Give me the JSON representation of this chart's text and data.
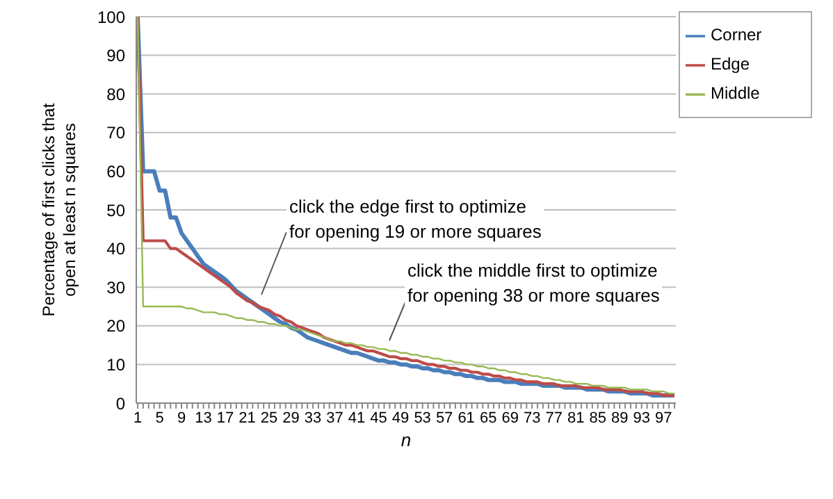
{
  "chart_data": {
    "type": "line",
    "xlabel": "n",
    "ylabel": "Percentage of first clicks that open at least n squares",
    "categories": [
      "1",
      null,
      null,
      null,
      "5",
      null,
      null,
      null,
      "9",
      null,
      null,
      null,
      "13",
      null,
      null,
      null,
      "17",
      null,
      null,
      null,
      "21",
      null,
      null,
      null,
      "25",
      null,
      null,
      null,
      "29",
      null,
      null,
      null,
      "33",
      null,
      null,
      null,
      "37",
      null,
      null,
      null,
      "41",
      null,
      null,
      null,
      "45",
      null,
      null,
      null,
      "49",
      null,
      null,
      null,
      "53",
      null,
      null,
      null,
      "57",
      null,
      null,
      null,
      "61",
      null,
      null,
      null,
      "65",
      null,
      null,
      null,
      "69",
      null,
      null,
      null,
      "73",
      null,
      null,
      null,
      "77",
      null,
      null,
      null,
      "81",
      null,
      null,
      null,
      "85",
      null,
      null,
      null,
      "89",
      null,
      null,
      null,
      "93",
      null,
      null,
      null,
      "97",
      null,
      null
    ],
    "series": [
      {
        "name": "Corner",
        "color": "#4a7ebb",
        "values": [
          100,
          60,
          60,
          60,
          55,
          55,
          48,
          48,
          44,
          42,
          40,
          38,
          36,
          35,
          34,
          33,
          32,
          30.5,
          29,
          28,
          27,
          26,
          25,
          24,
          23,
          22,
          21,
          20.5,
          19.5,
          19,
          18,
          17,
          16.5,
          16,
          15.5,
          15,
          14.5,
          14,
          13.5,
          13,
          13,
          12.5,
          12,
          11.5,
          11,
          11,
          10.5,
          10.5,
          10,
          10,
          9.5,
          9.5,
          9,
          9,
          8.5,
          8.5,
          8,
          8,
          7.5,
          7.5,
          7,
          7,
          6.5,
          6.5,
          6,
          6,
          6,
          5.5,
          5.5,
          5.5,
          5,
          5,
          5,
          5,
          4.5,
          4.5,
          4.5,
          4.5,
          4,
          4,
          4,
          4,
          3.5,
          3.5,
          3.5,
          3.5,
          3,
          3,
          3,
          3,
          2.5,
          2.5,
          2.5,
          2.5,
          2,
          2,
          2,
          2,
          2
        ]
      },
      {
        "name": "Edge",
        "color": "#be4b48",
        "values": [
          100,
          42,
          42,
          42,
          42,
          42,
          40,
          40,
          39,
          38,
          37,
          36,
          35,
          34,
          33,
          32,
          31,
          30,
          28.5,
          27.5,
          26.5,
          26,
          25,
          24.5,
          24,
          23,
          22.5,
          21.5,
          21,
          20,
          19.5,
          19,
          18.5,
          18,
          17,
          16.5,
          16,
          15.5,
          15,
          15,
          14.5,
          14,
          13.5,
          13.5,
          13,
          12.5,
          12,
          12,
          11.5,
          11.5,
          11,
          11,
          10.5,
          10,
          10,
          9.5,
          9.5,
          9,
          9,
          8.5,
          8.5,
          8,
          8,
          7.5,
          7.5,
          7,
          7,
          6.5,
          6.5,
          6,
          6,
          5.5,
          5.5,
          5.5,
          5,
          5,
          5,
          4.5,
          4.5,
          4.5,
          4.5,
          4,
          4,
          4,
          4,
          3.5,
          3.5,
          3.5,
          3.5,
          3,
          3,
          3,
          3,
          2.5,
          2.5,
          2.5,
          2,
          2,
          2
        ]
      },
      {
        "name": "Middle",
        "color": "#98b954",
        "values": [
          100,
          25,
          25,
          25,
          25,
          25,
          25,
          25,
          25,
          24.5,
          24.5,
          24,
          23.5,
          23.5,
          23.5,
          23,
          23,
          22.5,
          22,
          22,
          21.5,
          21.5,
          21,
          21,
          20.5,
          20.5,
          20,
          20,
          19.5,
          19,
          19,
          18.5,
          18,
          17.5,
          17,
          16.5,
          16,
          16,
          15.5,
          15.5,
          15,
          15,
          14.5,
          14.5,
          14,
          14,
          13.5,
          13.5,
          13,
          13,
          12.5,
          12.5,
          12,
          12,
          11.5,
          11.5,
          11,
          11,
          10.5,
          10.5,
          10,
          10,
          9.5,
          9.5,
          9,
          9,
          8.5,
          8.5,
          8,
          8,
          7.5,
          7.5,
          7,
          7,
          6.5,
          6.5,
          6,
          6,
          5.5,
          5.5,
          5,
          5,
          5,
          4.5,
          4.5,
          4.5,
          4,
          4,
          4,
          4,
          3.5,
          3.5,
          3.5,
          3.5,
          3,
          3,
          3,
          2.5,
          2.5
        ]
      }
    ],
    "ylim": [
      0,
      100
    ],
    "yticks": [
      0,
      10,
      20,
      30,
      40,
      50,
      60,
      70,
      80,
      90,
      100
    ],
    "grid": "y",
    "legend": "top right",
    "marker": "none",
    "line_style": "solid",
    "annotations": [
      "click the edge first to optimize\nfor opening 19 or more squares",
      "click the middle first to optimize\nfor opening 38 or more squares"
    ]
  }
}
